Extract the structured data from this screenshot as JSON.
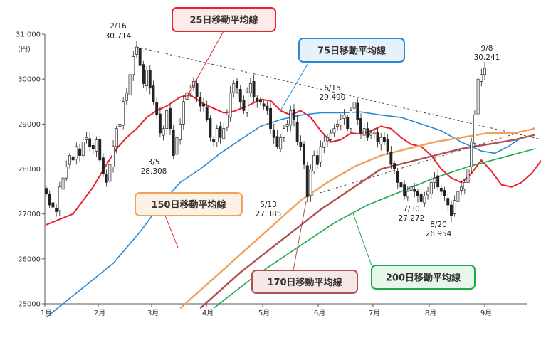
{
  "chart_data": {
    "type": "candlestick",
    "unit_label": "(円)",
    "x_ticks": [
      "1月",
      "2月",
      "3月",
      "4月",
      "5月",
      "6月",
      "7月",
      "8月",
      "9月"
    ],
    "ylim": [
      25000,
      31000
    ],
    "y_ticks": [
      {
        "v": 25000,
        "label": "25000"
      },
      {
        "v": 26000,
        "label": "26000"
      },
      {
        "v": 27000,
        "label": "27000"
      },
      {
        "v": 28000,
        "label": "28000"
      },
      {
        "v": 29000,
        "label": "29000"
      },
      {
        "v": 30000,
        "label": "30000"
      },
      {
        "v": 31000,
        "label": "31.000"
      }
    ],
    "close": [
      27450,
      27200,
      27150,
      27050,
      27600,
      27800,
      28050,
      28300,
      28200,
      28500,
      28300,
      28600,
      28700,
      28500,
      28450,
      28650,
      28200,
      27900,
      27700,
      28100,
      28500,
      28900,
      29000,
      29500,
      29700,
      30100,
      30500,
      30714,
      30300,
      29900,
      30200,
      29800,
      29500,
      29200,
      28800,
      28900,
      29300,
      28900,
      28300,
      28700,
      29000,
      29500,
      29700,
      29800,
      29950,
      29600,
      29400,
      29400,
      29100,
      28700,
      28600,
      28900,
      28700,
      28900,
      29200,
      29700,
      29900,
      29800,
      29500,
      29300,
      29700,
      29900,
      29600,
      29500,
      29500,
      29400,
      29300,
      28900,
      28700,
      28500,
      28700,
      28900,
      29000,
      29300,
      29100,
      28600,
      28500,
      28100,
      27385,
      28000,
      28300,
      28100,
      28500,
      28600,
      28700,
      28800,
      28900,
      29000,
      29100,
      29200,
      28900,
      29300,
      29490,
      29100,
      28800,
      28900,
      28700,
      28800,
      28800,
      28600,
      28700,
      28600,
      28400,
      28100,
      28000,
      27700,
      27600,
      27400,
      27500,
      27600,
      27500,
      27400,
      27272,
      27400,
      27500,
      27700,
      27800,
      27600,
      27500,
      27400,
      27200,
      26954,
      27300,
      27500,
      27600,
      27700,
      28000,
      28600,
      29200,
      30000,
      30100,
      30241
    ],
    "ma_lines": [
      {
        "name": "25日移動平均線",
        "color": "#e8212b",
        "values": [
          null,
          null,
          null,
          null,
          null,
          null,
          null,
          null,
          null,
          null,
          null,
          null,
          null,
          null,
          null,
          null,
          null,
          null,
          null,
          null,
          28000,
          28050,
          28100,
          28250,
          28420,
          28600,
          28780,
          28900,
          29000,
          29050,
          29100,
          29150,
          29220,
          29300,
          29400,
          29450,
          29500,
          29550,
          29570,
          29600,
          29590,
          29550,
          29500,
          29470,
          29450,
          29420,
          29400,
          29380,
          29350,
          29300,
          29280,
          29270,
          29250,
          29230,
          29220,
          29210,
          29200,
          29190,
          29180,
          29170,
          29160,
          29150,
          29140,
          29130,
          29100,
          29050,
          28950,
          28900,
          28850,
          28800,
          28750,
          28700,
          28680,
          28660,
          28640,
          28630,
          28620,
          28610,
          28600,
          28600,
          28610,
          28620,
          28640,
          28660,
          28680,
          28700,
          28720,
          28750,
          28800,
          28830,
          28850,
          28860,
          28880,
          28880,
          28870,
          28850,
          28820,
          28780,
          28720,
          28650,
          28550,
          28400,
          28250,
          28100,
          27950,
          27850,
          27780,
          27750,
          27720,
          27700,
          27700,
          27720,
          27750,
          27780,
          27800,
          27780,
          27700,
          27620,
          27580,
          27560,
          27560,
          27600,
          27700,
          27800,
          27950,
          28100,
          28200
        ]
      },
      {
        "name": "75日移動平均線",
        "color": "#2688d8",
        "values": [
          null,
          null,
          null,
          null,
          null,
          null,
          null,
          null,
          null,
          null,
          null,
          null,
          null,
          null,
          null,
          null,
          null,
          null,
          null,
          null,
          null,
          null,
          null,
          null,
          null,
          null,
          null,
          null,
          null,
          null,
          null,
          null,
          null,
          null,
          null,
          null,
          null,
          null,
          null,
          null,
          null,
          null,
          null,
          null,
          null,
          null,
          null,
          null,
          null,
          null,
          null,
          null,
          null,
          null,
          null,
          null,
          null,
          null,
          null,
          null,
          null,
          null,
          null,
          null,
          null,
          null,
          null,
          null,
          null,
          null,
          null,
          null,
          null,
          null,
          null,
          null,
          null,
          null,
          null,
          null,
          null,
          null,
          null,
          null,
          null,
          null,
          null,
          null,
          null,
          null,
          null,
          null,
          null,
          null,
          null,
          null,
          null,
          null,
          null,
          null,
          null,
          null,
          null,
          null,
          null,
          null,
          null,
          null,
          null,
          null,
          null,
          null,
          null,
          null,
          null,
          null,
          null,
          null,
          null,
          null,
          null,
          null,
          null,
          null,
          null,
          null,
          null,
          null,
          null,
          null,
          null,
          null,
          null,
          null
        ]
      },
      {
        "name": "150日移動平均線",
        "color": "#f0a25a",
        "values": []
      },
      {
        "name": "170日移動平均線",
        "color": "#b05050",
        "values": []
      },
      {
        "name": "200日移動平均線",
        "color": "#1aaa4a",
        "values": []
      }
    ],
    "annotations": [
      {
        "date": "2/16",
        "value": "30.714"
      },
      {
        "date": "3/5",
        "value": "28.308"
      },
      {
        "date": "5/13",
        "value": "27.385"
      },
      {
        "date": "6/15",
        "value": "29.490"
      },
      {
        "date": "7/30",
        "value": "27.272"
      },
      {
        "date": "8/20",
        "value": "26.954"
      },
      {
        "date": "9/8",
        "value": "30.241"
      }
    ],
    "legend_boxes": [
      "25日移動平均線",
      "75日移動平均線",
      "150日移動平均線",
      "170日移動平均線",
      "200日移動平均線"
    ]
  }
}
